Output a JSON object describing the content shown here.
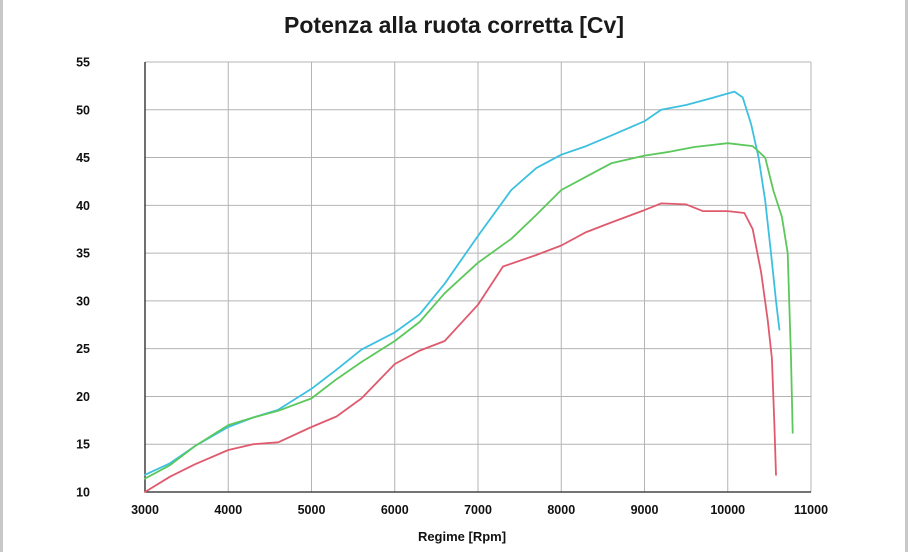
{
  "chart_data": {
    "type": "line",
    "title": "Potenza alla ruota corretta [Cv]",
    "xlabel": "Regime [Rpm]",
    "ylabel": "",
    "xlim": [
      3000,
      11000
    ],
    "ylim": [
      10,
      55
    ],
    "x_ticks": [
      3000,
      4000,
      5000,
      6000,
      7000,
      8000,
      9000,
      10000,
      11000
    ],
    "y_ticks": [
      10,
      15,
      20,
      25,
      30,
      35,
      40,
      45,
      50,
      55
    ],
    "grid": true,
    "legend": "none",
    "series": [
      {
        "color": "#3cc0e0",
        "points": [
          [
            3000,
            11.8
          ],
          [
            3300,
            13.0
          ],
          [
            3600,
            14.8
          ],
          [
            4000,
            16.8
          ],
          [
            4300,
            17.8
          ],
          [
            4600,
            18.6
          ],
          [
            5000,
            20.8
          ],
          [
            5300,
            22.8
          ],
          [
            5600,
            24.9
          ],
          [
            6000,
            26.7
          ],
          [
            6300,
            28.6
          ],
          [
            6600,
            31.8
          ],
          [
            7000,
            36.8
          ],
          [
            7400,
            41.6
          ],
          [
            7700,
            43.9
          ],
          [
            8000,
            45.3
          ],
          [
            8300,
            46.2
          ],
          [
            8600,
            47.3
          ],
          [
            9000,
            48.8
          ],
          [
            9200,
            50.0
          ],
          [
            9500,
            50.5
          ],
          [
            9800,
            51.2
          ],
          [
            10000,
            51.7
          ],
          [
            10080,
            51.9
          ],
          [
            10180,
            51.3
          ],
          [
            10280,
            48.5
          ],
          [
            10370,
            45.0
          ],
          [
            10450,
            40.5
          ],
          [
            10520,
            35.0
          ],
          [
            10580,
            30.0
          ],
          [
            10620,
            27.0
          ]
        ]
      },
      {
        "color": "#5cc85c",
        "points": [
          [
            3000,
            11.4
          ],
          [
            3300,
            12.8
          ],
          [
            3600,
            14.8
          ],
          [
            4000,
            17.0
          ],
          [
            4300,
            17.8
          ],
          [
            4600,
            18.5
          ],
          [
            5000,
            19.8
          ],
          [
            5300,
            21.8
          ],
          [
            5600,
            23.6
          ],
          [
            6000,
            25.8
          ],
          [
            6300,
            27.8
          ],
          [
            6600,
            30.8
          ],
          [
            7000,
            34.0
          ],
          [
            7400,
            36.5
          ],
          [
            7700,
            39.0
          ],
          [
            8000,
            41.6
          ],
          [
            8300,
            43.0
          ],
          [
            8600,
            44.4
          ],
          [
            9000,
            45.2
          ],
          [
            9300,
            45.6
          ],
          [
            9600,
            46.1
          ],
          [
            10000,
            46.5
          ],
          [
            10300,
            46.2
          ],
          [
            10450,
            45.0
          ],
          [
            10550,
            41.5
          ],
          [
            10650,
            38.8
          ],
          [
            10720,
            35.0
          ],
          [
            10760,
            24.0
          ],
          [
            10780,
            16.2
          ]
        ]
      },
      {
        "color": "#e05a6e",
        "points": [
          [
            3000,
            10.0
          ],
          [
            3300,
            11.6
          ],
          [
            3600,
            12.9
          ],
          [
            4000,
            14.4
          ],
          [
            4300,
            15.0
          ],
          [
            4600,
            15.2
          ],
          [
            5000,
            16.8
          ],
          [
            5300,
            17.9
          ],
          [
            5600,
            19.8
          ],
          [
            6000,
            23.4
          ],
          [
            6300,
            24.8
          ],
          [
            6600,
            25.8
          ],
          [
            7000,
            29.6
          ],
          [
            7300,
            33.6
          ],
          [
            7700,
            34.8
          ],
          [
            8000,
            35.8
          ],
          [
            8300,
            37.2
          ],
          [
            8600,
            38.2
          ],
          [
            9000,
            39.5
          ],
          [
            9200,
            40.2
          ],
          [
            9500,
            40.1
          ],
          [
            9700,
            39.4
          ],
          [
            10000,
            39.4
          ],
          [
            10200,
            39.2
          ],
          [
            10300,
            37.5
          ],
          [
            10400,
            33.0
          ],
          [
            10480,
            28.0
          ],
          [
            10530,
            24.0
          ],
          [
            10560,
            17.0
          ],
          [
            10580,
            11.8
          ]
        ]
      }
    ]
  }
}
